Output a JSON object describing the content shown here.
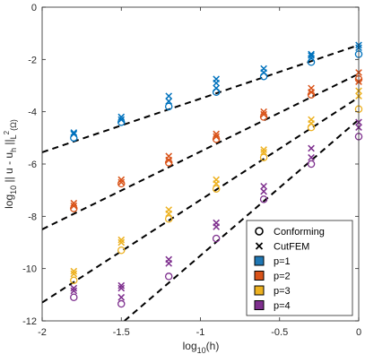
{
  "chart_data": {
    "type": "scatter",
    "xlabel": "log_10(h)",
    "ylabel": "log_10 || u - u_h ||_L^2(Ω)",
    "xlim": [
      -2,
      0
    ],
    "ylim": [
      -12,
      0
    ],
    "xticks": [
      -2,
      -1.5,
      -1,
      -0.5,
      0
    ],
    "yticks": [
      0,
      -2,
      -4,
      -6,
      -8,
      -10,
      -12
    ],
    "xtick_labels": [
      "-2",
      "-1.5",
      "-1",
      "-0.5",
      "0"
    ],
    "ytick_labels": [
      "0",
      "-2",
      "-4",
      "-6",
      "-8",
      "-10",
      "-12"
    ],
    "legend": {
      "position": "bottom-right",
      "entries": [
        {
          "label": "Conforming",
          "marker": "circle"
        },
        {
          "label": "CutFEM",
          "marker": "x"
        },
        {
          "label": "p=1",
          "color": "#1f77b4"
        },
        {
          "label": "p=2",
          "color": "#d95319"
        },
        {
          "label": "p=3",
          "color": "#edb120"
        },
        {
          "label": "p=4",
          "color": "#7e2f8e"
        }
      ]
    },
    "fit_lines": [
      {
        "p": 1,
        "x": [
          -2,
          0
        ],
        "y": [
          -5.55,
          -1.45
        ]
      },
      {
        "p": 2,
        "x": [
          -2,
          0
        ],
        "y": [
          -8.5,
          -2.55
        ]
      },
      {
        "p": 3,
        "x": [
          -2,
          0
        ],
        "y": [
          -11.3,
          -3.45
        ]
      },
      {
        "p": 4,
        "x": [
          -1.48,
          0
        ],
        "y": [
          -12.0,
          -4.3
        ]
      }
    ],
    "series": [
      {
        "p": 1,
        "color": "#0072bd",
        "conforming": [
          [
            -1.8,
            -5.0
          ],
          [
            -1.5,
            -4.4
          ],
          [
            -1.2,
            -3.8
          ],
          [
            -0.9,
            -3.25
          ],
          [
            -0.6,
            -2.65
          ],
          [
            -0.3,
            -2.1
          ],
          [
            0,
            -1.8
          ]
        ],
        "cutfem": [
          [
            -1.8,
            -4.85
          ],
          [
            -1.8,
            -4.8
          ],
          [
            -1.5,
            -4.3
          ],
          [
            -1.5,
            -4.2
          ],
          [
            -1.2,
            -3.6
          ],
          [
            -1.2,
            -3.4
          ],
          [
            -0.9,
            -3.1
          ],
          [
            -0.9,
            -2.9
          ],
          [
            -0.9,
            -2.75
          ],
          [
            -0.6,
            -2.5
          ],
          [
            -0.6,
            -2.35
          ],
          [
            -0.3,
            -1.95
          ],
          [
            -0.3,
            -1.85
          ],
          [
            -0.3,
            -1.8
          ],
          [
            0,
            -1.55
          ],
          [
            0,
            -1.45
          ]
        ]
      },
      {
        "p": 2,
        "color": "#d95319",
        "conforming": [
          [
            -1.8,
            -7.7
          ],
          [
            -1.5,
            -6.75
          ],
          [
            -1.2,
            -5.95
          ],
          [
            -0.9,
            -5.05
          ],
          [
            -0.6,
            -4.2
          ],
          [
            -0.3,
            -3.35
          ],
          [
            0,
            -2.75
          ]
        ],
        "cutfem": [
          [
            -1.8,
            -7.6
          ],
          [
            -1.8,
            -7.5
          ],
          [
            -1.5,
            -6.7
          ],
          [
            -1.5,
            -6.6
          ],
          [
            -1.2,
            -5.85
          ],
          [
            -1.2,
            -5.7
          ],
          [
            -0.9,
            -4.95
          ],
          [
            -0.9,
            -4.85
          ],
          [
            -0.6,
            -4.1
          ],
          [
            -0.6,
            -4.0
          ],
          [
            -0.3,
            -3.25
          ],
          [
            -0.3,
            -3.1
          ],
          [
            0,
            -2.85
          ],
          [
            0,
            -2.5
          ]
        ]
      },
      {
        "p": 3,
        "color": "#edb120",
        "conforming": [
          [
            -1.8,
            -10.45
          ],
          [
            -1.5,
            -9.3
          ],
          [
            -1.2,
            -8.1
          ],
          [
            -0.9,
            -6.95
          ],
          [
            -0.6,
            -5.75
          ],
          [
            -0.3,
            -4.6
          ],
          [
            0,
            -3.9
          ]
        ],
        "cutfem": [
          [
            -1.8,
            -10.2
          ],
          [
            -1.8,
            -10.1
          ],
          [
            -1.5,
            -9.0
          ],
          [
            -1.5,
            -8.9
          ],
          [
            -1.2,
            -7.9
          ],
          [
            -1.2,
            -7.75
          ],
          [
            -0.9,
            -6.75
          ],
          [
            -0.9,
            -6.6
          ],
          [
            -0.6,
            -5.55
          ],
          [
            -0.6,
            -5.45
          ],
          [
            -0.3,
            -4.45
          ],
          [
            -0.3,
            -4.3
          ],
          [
            0,
            -3.4
          ],
          [
            0,
            -3.2
          ]
        ]
      },
      {
        "p": 4,
        "color": "#7e2f8e",
        "conforming": [
          [
            -1.8,
            -11.1
          ],
          [
            -1.5,
            -11.35
          ],
          [
            -1.2,
            -10.3
          ],
          [
            -0.9,
            -8.85
          ],
          [
            -0.6,
            -7.35
          ],
          [
            -0.3,
            -6.0
          ],
          [
            0,
            -4.95
          ]
        ],
        "cutfem": [
          [
            -1.8,
            -10.85
          ],
          [
            -1.8,
            -10.75
          ],
          [
            -1.5,
            -11.1
          ],
          [
            -1.5,
            -10.75
          ],
          [
            -1.5,
            -10.65
          ],
          [
            -1.2,
            -9.8
          ],
          [
            -1.2,
            -9.65
          ],
          [
            -0.9,
            -8.4
          ],
          [
            -0.9,
            -8.25
          ],
          [
            -0.6,
            -7.05
          ],
          [
            -0.6,
            -6.85
          ],
          [
            -0.3,
            -5.75
          ],
          [
            -0.3,
            -5.4
          ],
          [
            0,
            -4.6
          ],
          [
            0,
            -4.4
          ]
        ]
      }
    ]
  }
}
